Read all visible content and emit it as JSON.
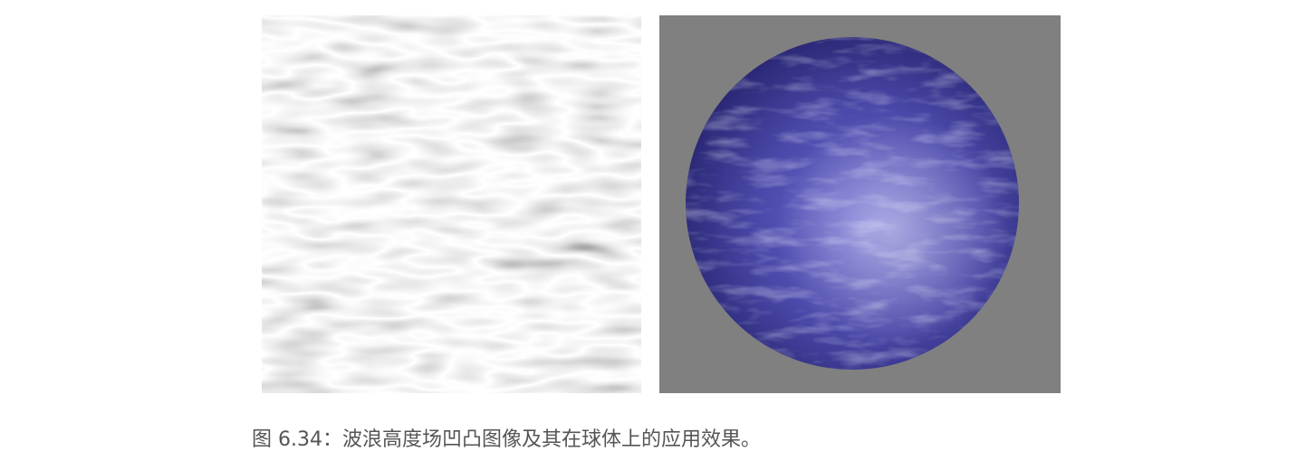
{
  "figure": {
    "caption": "图 6.34：波浪高度场凹凸图像及其在球体上的应用效果。",
    "left_panel_image": "grayscale-wave-height-field",
    "right_panel_image": "blue-bump-mapped-sphere"
  },
  "colors": {
    "left_background": "#c8c8c8",
    "right_background": "#808080",
    "sphere_base": "#4a48a8",
    "caption_text": "#555555"
  }
}
